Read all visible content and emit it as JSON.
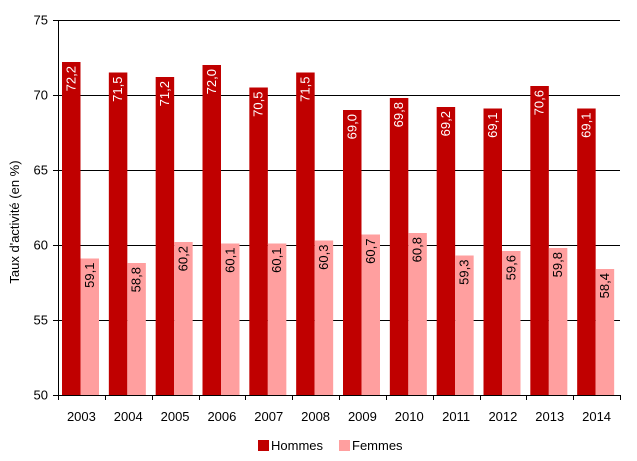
{
  "chart_data": {
    "type": "bar",
    "title": "",
    "xlabel": "",
    "ylabel": "Taux d'activité (en %)",
    "ylim": [
      50,
      75
    ],
    "yticks": [
      50,
      55,
      60,
      65,
      70,
      75
    ],
    "grid": true,
    "legend_position": "bottom",
    "categories": [
      "2003",
      "2004",
      "2005",
      "2006",
      "2007",
      "2008",
      "2009",
      "2010",
      "2011",
      "2012",
      "2013",
      "2014"
    ],
    "series": [
      {
        "name": "Hommes",
        "color": "#C00000",
        "label_color": "#ffffff",
        "values": [
          72.2,
          71.5,
          71.2,
          72.0,
          70.5,
          71.5,
          69.0,
          69.8,
          69.2,
          69.1,
          70.6,
          69.1
        ],
        "labels": [
          "72,2",
          "71,5",
          "71,2",
          "72,0",
          "70,5",
          "71,5",
          "69,0",
          "69,8",
          "69,2",
          "69,1",
          "70,6",
          "69,1"
        ]
      },
      {
        "name": "Femmes",
        "color": "#FF9F9F",
        "label_color": "#000000",
        "values": [
          59.1,
          58.8,
          60.2,
          60.1,
          60.1,
          60.3,
          60.7,
          60.8,
          59.3,
          59.6,
          59.8,
          58.4
        ],
        "labels": [
          "59,1",
          "58,8",
          "60,2",
          "60,1",
          "60,1",
          "60,3",
          "60,7",
          "60,8",
          "59,3",
          "59,6",
          "59,8",
          "58,4"
        ]
      }
    ]
  }
}
